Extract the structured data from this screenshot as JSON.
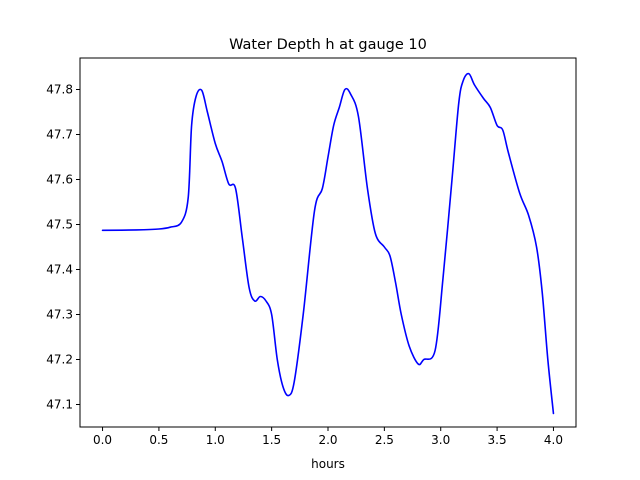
{
  "chart_data": {
    "type": "line",
    "title": "Water Depth h at gauge 10",
    "xlabel": "hours",
    "ylabel": "",
    "xlim": [
      -0.2,
      4.2
    ],
    "ylim": [
      47.05,
      47.87
    ],
    "grid": false,
    "x_ticks": [
      0.0,
      0.5,
      1.0,
      1.5,
      2.0,
      2.5,
      3.0,
      3.5,
      4.0
    ],
    "x_tick_labels": [
      "0.0",
      "0.5",
      "1.0",
      "1.5",
      "2.0",
      "2.5",
      "3.0",
      "3.5",
      "4.0"
    ],
    "y_ticks": [
      47.1,
      47.2,
      47.3,
      47.4,
      47.5,
      47.6,
      47.7,
      47.8
    ],
    "y_tick_labels": [
      "47.1",
      "47.2",
      "47.3",
      "47.4",
      "47.5",
      "47.6",
      "47.7",
      "47.8"
    ],
    "series": [
      {
        "color": "#0000ff",
        "x": [
          0.0,
          0.3,
          0.5,
          0.6,
          0.7,
          0.76,
          0.79,
          0.83,
          0.88,
          0.93,
          1.0,
          1.06,
          1.12,
          1.18,
          1.24,
          1.3,
          1.35,
          1.4,
          1.45,
          1.5,
          1.55,
          1.6,
          1.65,
          1.7,
          1.78,
          1.88,
          1.95,
          2.0,
          2.05,
          2.1,
          2.15,
          2.2,
          2.27,
          2.35,
          2.42,
          2.5,
          2.55,
          2.6,
          2.65,
          2.72,
          2.8,
          2.85,
          2.95,
          3.02,
          3.1,
          3.16,
          3.2,
          3.25,
          3.3,
          3.38,
          3.44,
          3.5,
          3.55,
          3.6,
          3.7,
          3.78,
          3.85,
          3.9,
          3.95,
          4.0
        ],
        "y": [
          47.487,
          47.488,
          47.49,
          47.494,
          47.505,
          47.56,
          47.72,
          47.785,
          47.798,
          47.75,
          47.68,
          47.64,
          47.59,
          47.58,
          47.47,
          47.36,
          47.33,
          47.34,
          47.33,
          47.3,
          47.2,
          47.14,
          47.12,
          47.15,
          47.3,
          47.53,
          47.58,
          47.65,
          47.72,
          47.76,
          47.8,
          47.79,
          47.74,
          47.58,
          47.48,
          47.45,
          47.43,
          47.37,
          47.3,
          47.23,
          47.19,
          47.2,
          47.22,
          47.38,
          47.6,
          47.77,
          47.82,
          47.835,
          47.81,
          47.78,
          47.76,
          47.72,
          47.71,
          47.66,
          47.57,
          47.52,
          47.45,
          47.35,
          47.2,
          47.08
        ]
      }
    ]
  }
}
